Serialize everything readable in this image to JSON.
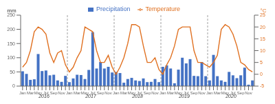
{
  "chart_data": {
    "type": "bar",
    "ylabel": "mm",
    "y2label": "°C",
    "categories": [
      "Jan",
      null,
      "Mar",
      null,
      "May",
      null,
      "Jul",
      null,
      "Sep",
      null,
      "Nov",
      null,
      "Jan",
      null,
      "Mar",
      null,
      "May",
      null,
      "Jul",
      null,
      "Sep",
      null,
      "Nov",
      null,
      "Jan",
      null,
      "Mar",
      null,
      "May",
      null,
      "Jul",
      null,
      "Sep",
      null,
      "Nov",
      null,
      "Jan",
      null,
      "Mar",
      null,
      "May",
      null,
      "Jul",
      null,
      "Sep",
      null,
      "Nov",
      null,
      "Jan",
      null,
      "Mar",
      null,
      "May",
      null,
      "Jul",
      null,
      "Sep",
      null,
      "Nov",
      null
    ],
    "series": [
      {
        "name": "Precipitation",
        "type": "bar",
        "color": "#4472C4",
        "values": [
          52,
          43,
          22,
          24,
          113,
          53,
          55,
          38,
          40,
          20,
          15,
          36,
          14,
          27,
          40,
          39,
          25,
          57,
          190,
          62,
          85,
          62,
          68,
          48,
          50,
          46,
          12,
          25,
          29,
          20,
          18,
          27,
          14,
          15,
          25,
          14,
          68,
          73,
          62,
          10,
          58,
          100,
          80,
          95,
          36,
          35,
          85,
          35,
          20,
          110,
          35,
          20,
          15,
          50,
          38,
          28,
          38,
          65,
          5,
          20
        ]
      },
      {
        "name": "Temperature",
        "type": "line",
        "color": "#E07020",
        "axis": "y2",
        "values": [
          3,
          5,
          10,
          18,
          20,
          19,
          17,
          9,
          5,
          9,
          10,
          4,
          1,
          3,
          7,
          10,
          20,
          19,
          18,
          10,
          5,
          5,
          8,
          3,
          0,
          3,
          7,
          13,
          21,
          21,
          20,
          12,
          5,
          5,
          7,
          2,
          0,
          4,
          7,
          12,
          19,
          20,
          20,
          20,
          10,
          5,
          5,
          4,
          3,
          5,
          8,
          19,
          21,
          20,
          17,
          12,
          5,
          4,
          2,
          1
        ]
      }
    ],
    "ylim": [
      0,
      250
    ],
    "yticks": [
      0,
      50,
      100,
      150,
      200,
      250
    ],
    "y2lim": [
      -5,
      25
    ],
    "y2ticks": [
      -5,
      0,
      5,
      10,
      15,
      20,
      25
    ],
    "annotations": [
      "2016",
      "2017",
      "2018",
      "2019",
      "2020"
    ],
    "legend": "top",
    "grid": false
  }
}
